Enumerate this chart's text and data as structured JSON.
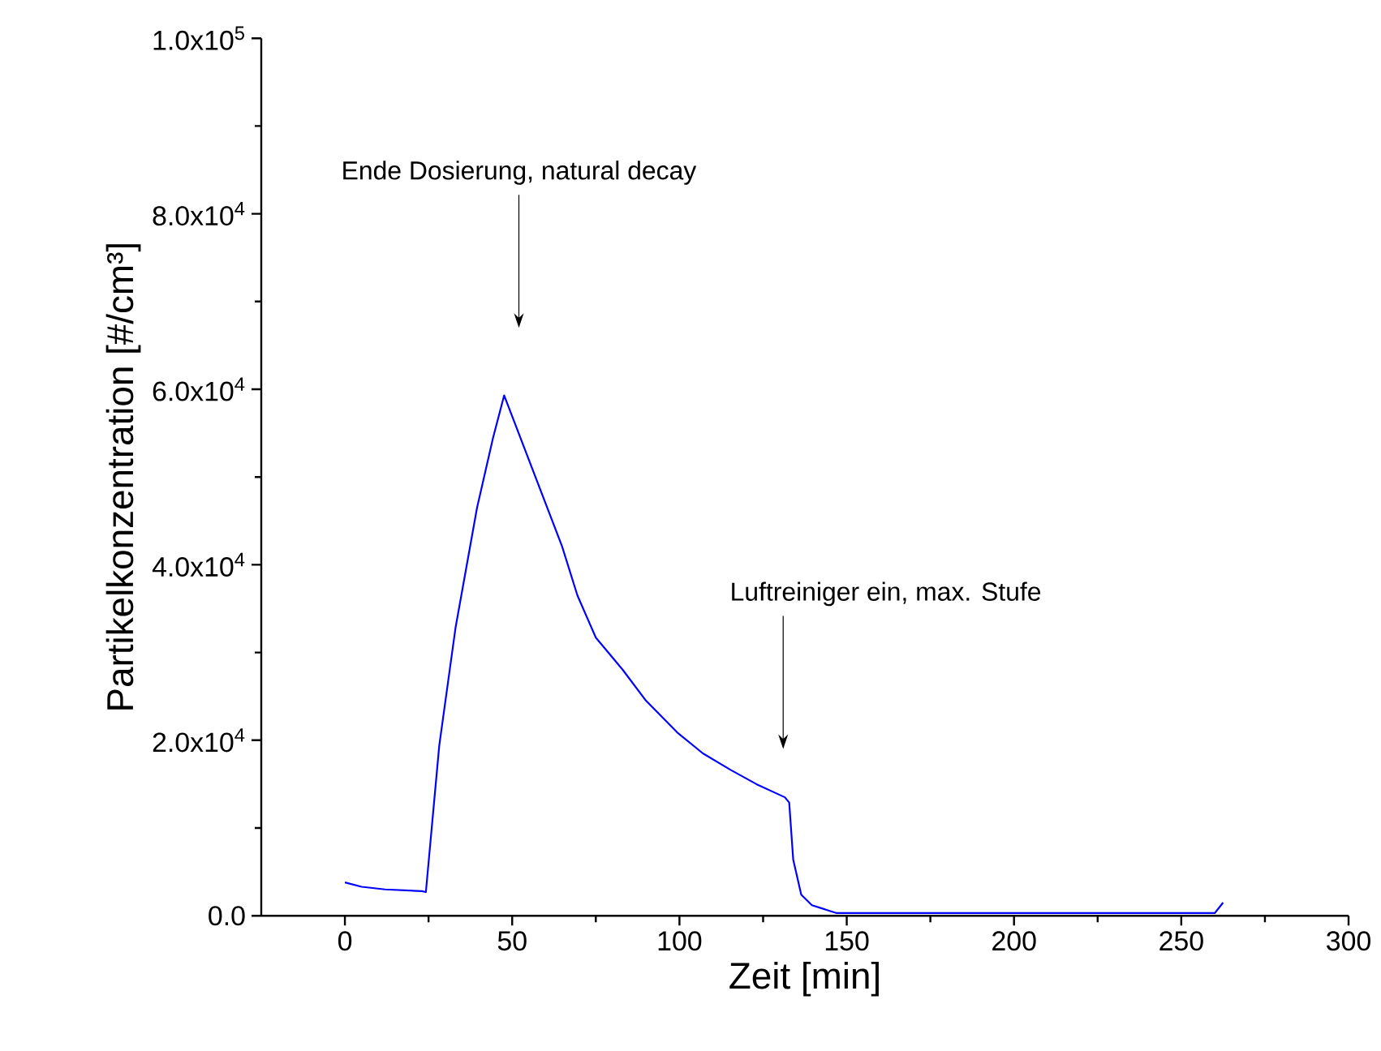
{
  "chart_data": {
    "type": "line",
    "xlabel": "Zeit [min]",
    "ylabel": "Partikelkonzentration [#/cm³]",
    "xlim": [
      -25,
      300
    ],
    "ylim": [
      0,
      100000
    ],
    "xticks": [
      0,
      50,
      100,
      150,
      200,
      250,
      300
    ],
    "yticks": [
      {
        "value": 0,
        "label": "0.0"
      },
      {
        "value": 20000,
        "label": "2.0x10$^{4}$"
      },
      {
        "value": 40000,
        "label": "4.0x10$^{4}$"
      },
      {
        "value": 60000,
        "label": "6.0x10$^{4}$"
      },
      {
        "value": 80000,
        "label": "8.0x10$^{4}$"
      },
      {
        "value": 100000,
        "label": "1.0x10$^{5}$"
      }
    ],
    "grid": false,
    "marker": "none",
    "line_style": "solid",
    "annotations": [
      "Ende Dosierung, natural decay",
      "Luftreiniger ein, max. Stufe"
    ],
    "series": [
      {
        "color": "#0000ff",
        "x": [
          0,
          5,
          12,
          23,
          24.2,
          28.2,
          33.1,
          39.5,
          44.3,
          47.6,
          64.9,
          69.5,
          75,
          83.1,
          90,
          99.3,
          107,
          115.4,
          123,
          131.5,
          132.8,
          134,
          136.4,
          139.6,
          147,
          160,
          200,
          240,
          260,
          262.5
        ],
        "values": [
          3800,
          3300,
          3000,
          2800,
          2700,
          19400,
          32900,
          46500,
          54500,
          59300,
          42100,
          36500,
          31700,
          28000,
          24500,
          20900,
          18500,
          16600,
          15000,
          13500,
          12900,
          6400,
          2400,
          1200,
          300,
          300,
          300,
          300,
          300,
          1500
        ]
      }
    ]
  }
}
